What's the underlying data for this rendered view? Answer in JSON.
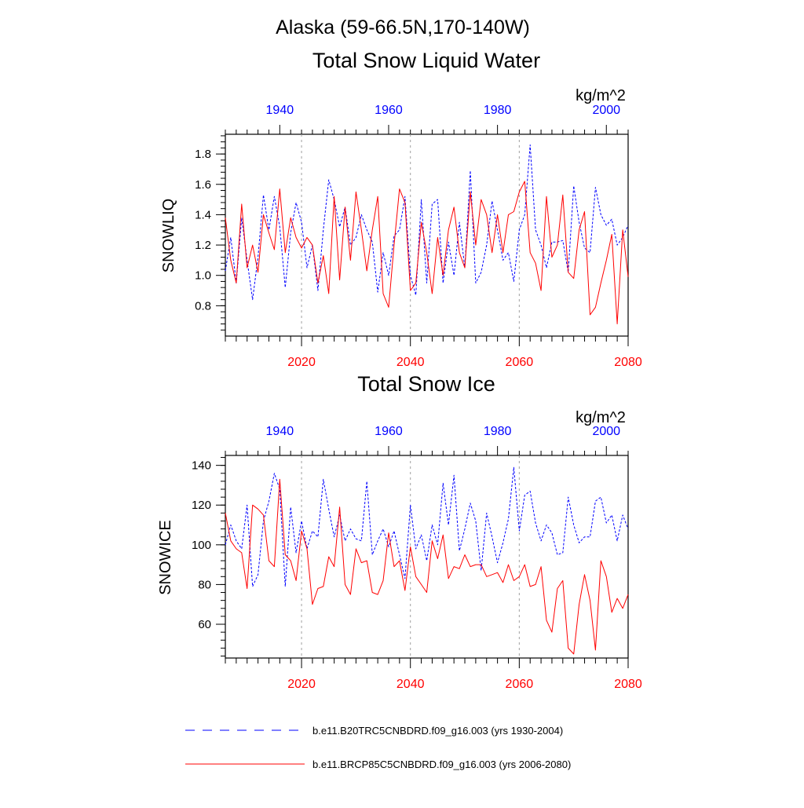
{
  "page": {
    "region_title": "Alaska (59-66.5N,170-140W)"
  },
  "colors": {
    "historical": "#0000ff",
    "future": "#ff0000",
    "axis": "#000000",
    "gridline": "#a0a0a0"
  },
  "chart_data": [
    {
      "type": "line",
      "title": "Total Snow Liquid Water",
      "units": "kg/m^2",
      "ylabel": "SNOWLIQ",
      "ylim": [
        0.6,
        1.93
      ],
      "yticks": [
        0.8,
        1.0,
        1.2,
        1.4,
        1.6,
        1.8
      ],
      "ytick_labels": [
        "0.8",
        "1.0",
        "1.2",
        "1.4",
        "1.6",
        "1.8"
      ],
      "bottom_axis": {
        "range": [
          2006,
          2080
        ],
        "ticks": [
          2020,
          2040,
          2060,
          2080
        ],
        "tick_labels": [
          "2020",
          "2040",
          "2060",
          "2080"
        ]
      },
      "top_axis": {
        "range": [
          1930,
          2004
        ],
        "ticks": [
          1940,
          1960,
          1980,
          2000
        ],
        "tick_labels": [
          "1940",
          "1960",
          "1980",
          "2000"
        ]
      },
      "vlines": [
        2020,
        2040,
        2060
      ],
      "series": [
        {
          "name": "b.e11.B20TRC5CNBDRD.f09_g16.003 (yrs 1930-2004)",
          "axis": "top",
          "start_year": 1930,
          "style": "dashed",
          "values": [
            1.03,
            1.25,
            0.95,
            1.38,
            1.1,
            0.84,
            1.12,
            1.53,
            1.3,
            1.52,
            1.32,
            0.92,
            1.28,
            1.48,
            1.35,
            1.05,
            1.2,
            0.9,
            1.3,
            1.63,
            1.5,
            1.32,
            1.45,
            1.2,
            1.25,
            1.4,
            1.3,
            1.22,
            0.89,
            1.15,
            1.0,
            1.26,
            1.3,
            1.52,
            1.0,
            0.87,
            1.5,
            0.95,
            1.47,
            1.5,
            0.95,
            1.22,
            1.0,
            1.35,
            1.05,
            1.69,
            0.95,
            1.02,
            1.2,
            1.49,
            1.3,
            1.1,
            1.15,
            0.96,
            1.3,
            1.4,
            1.86,
            1.3,
            1.2,
            1.05,
            1.22,
            1.22,
            1.23,
            1.02,
            1.59,
            1.35,
            1.18,
            1.15,
            1.58,
            1.4,
            1.33,
            1.37,
            1.2,
            1.25,
            1.33
          ]
        },
        {
          "name": "b.e11.BRCP85C5CNBDRD.f09_g16.003 (yrs 2006-2080)",
          "axis": "bottom",
          "start_year": 2006,
          "style": "solid",
          "values": [
            1.38,
            1.1,
            0.95,
            1.47,
            1.05,
            1.2,
            1.02,
            1.4,
            1.28,
            1.17,
            1.57,
            1.15,
            1.38,
            1.25,
            1.18,
            1.25,
            1.2,
            0.95,
            1.13,
            0.88,
            1.52,
            0.97,
            1.45,
            1.1,
            1.55,
            1.3,
            1.03,
            1.3,
            1.52,
            0.88,
            0.79,
            1.2,
            1.57,
            1.48,
            0.9,
            0.95,
            1.35,
            1.15,
            0.88,
            1.25,
            1.0,
            1.3,
            1.45,
            1.15,
            1.05,
            1.55,
            1.2,
            1.5,
            1.4,
            1.15,
            1.4,
            1.15,
            1.4,
            1.42,
            1.55,
            1.62,
            1.15,
            1.08,
            0.9,
            1.52,
            1.12,
            1.2,
            1.53,
            1.02,
            0.98,
            1.3,
            1.42,
            0.74,
            0.79,
            0.95,
            1.1,
            1.27,
            0.68,
            1.3,
            0.99
          ]
        }
      ]
    },
    {
      "type": "line",
      "title": "Total Snow Ice",
      "units": "kg/m^2",
      "ylabel": "SNOWICE",
      "ylim": [
        43,
        145
      ],
      "yticks": [
        60,
        80,
        100,
        120,
        140
      ],
      "ytick_labels": [
        "60",
        "80",
        "100",
        "120",
        "140"
      ],
      "bottom_axis": {
        "range": [
          2006,
          2080
        ],
        "ticks": [
          2020,
          2040,
          2060,
          2080
        ],
        "tick_labels": [
          "2020",
          "2040",
          "2060",
          "2080"
        ]
      },
      "top_axis": {
        "range": [
          1930,
          2004
        ],
        "ticks": [
          1940,
          1960,
          1980,
          2000
        ],
        "tick_labels": [
          "1940",
          "1960",
          "1980",
          "2000"
        ]
      },
      "vlines": [
        2020,
        2040,
        2060
      ],
      "series": [
        {
          "name": "b.e11.B20TRC5CNBDRD.f09_g16.003 (yrs 1930-2004)",
          "axis": "top",
          "start_year": 1930,
          "style": "dashed",
          "values": [
            100,
            110,
            102,
            98,
            120,
            79,
            85,
            112,
            122,
            136,
            128,
            79,
            119,
            96,
            112,
            98,
            107,
            104,
            133,
            118,
            104,
            115,
            102,
            108,
            103,
            102,
            132,
            95,
            102,
            108,
            99,
            107,
            95,
            83,
            120,
            98,
            105,
            92,
            110,
            100,
            131,
            110,
            135,
            97,
            108,
            121,
            112,
            87,
            116,
            104,
            91,
            101,
            113,
            139,
            107,
            125,
            127,
            111,
            102,
            110,
            106,
            95,
            96,
            124,
            110,
            101,
            104,
            104,
            122,
            124,
            111,
            115,
            102,
            115,
            108
          ]
        },
        {
          "name": "b.e11.BRCP85C5CNBDRD.f09_g16.003 (yrs 2006-2080)",
          "axis": "bottom",
          "start_year": 2006,
          "style": "solid",
          "values": [
            116,
            102,
            98,
            96,
            78,
            120,
            118,
            115,
            92,
            89,
            133,
            95,
            92,
            82,
            107,
            98,
            70,
            78,
            79,
            94,
            89,
            119,
            80,
            75,
            98,
            91,
            92,
            76,
            75,
            82,
            106,
            89,
            92,
            77,
            99,
            84,
            80,
            76,
            102,
            93,
            105,
            83,
            89,
            88,
            95,
            89,
            90,
            90,
            84,
            85,
            86,
            81,
            90,
            82,
            84,
            90,
            79,
            80,
            89,
            62,
            56,
            78,
            82,
            48,
            45,
            70,
            85,
            72,
            47,
            92,
            84,
            66,
            73,
            68,
            75
          ]
        }
      ]
    }
  ],
  "legend": {
    "items": [
      {
        "label": "b.e11.B20TRC5CNBDRD.f09_g16.003 (yrs 1930-2004)",
        "style": "dashed",
        "color": "#0000ff"
      },
      {
        "label": "b.e11.BRCP85C5CNBDRD.f09_g16.003 (yrs 2006-2080)",
        "style": "solid",
        "color": "#ff0000"
      }
    ]
  }
}
